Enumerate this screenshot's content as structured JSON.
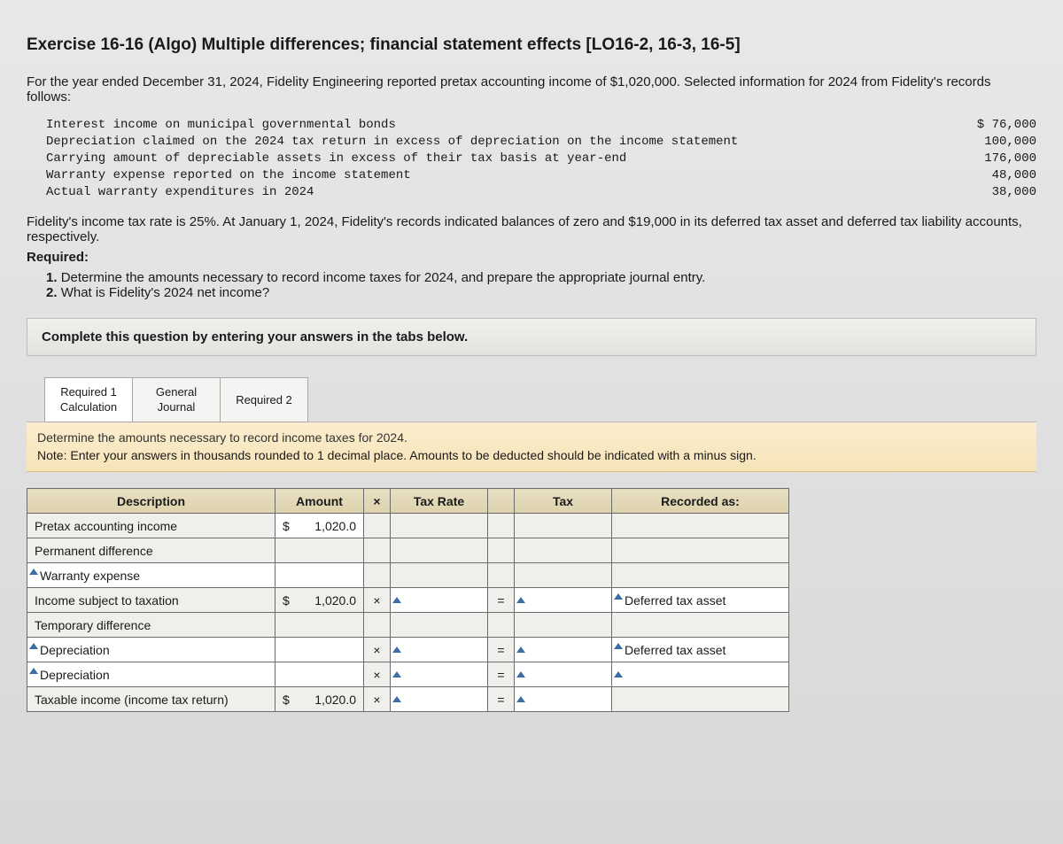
{
  "title": "Exercise 16-16 (Algo) Multiple differences; financial statement effects [LO16-2, 16-3, 16-5]",
  "intro": "For the year ended December 31, 2024, Fidelity Engineering reported pretax accounting income of $1,020,000. Selected information for 2024 from Fidelity's records follows:",
  "records": [
    {
      "label": "Interest income on municipal governmental bonds",
      "value": "$ 76,000"
    },
    {
      "label": "Depreciation claimed on the 2024 tax return in excess of depreciation on the income statement",
      "value": "100,000"
    },
    {
      "label": "Carrying amount of depreciable assets in excess of their tax basis at year-end",
      "value": "176,000"
    },
    {
      "label": "Warranty expense reported on the income statement",
      "value": "48,000"
    },
    {
      "label": "Actual warranty expenditures in 2024",
      "value": "38,000"
    }
  ],
  "para2": "Fidelity's income tax rate is 25%. At January 1, 2024, Fidelity's records indicated balances of zero and $19,000 in its deferred tax asset and deferred tax liability accounts, respectively.",
  "required_label": "Required:",
  "requirements": [
    "Determine the amounts necessary to record income taxes for 2024, and prepare the appropriate journal entry.",
    "What is Fidelity's 2024 net income?"
  ],
  "instruction": "Complete this question by entering your answers in the tabs below.",
  "tabs": {
    "t1a": "Required 1",
    "t1b": "Calculation",
    "t2a": "General",
    "t2b": "Journal",
    "t3": "Required 2"
  },
  "note_line1": "Determine the amounts necessary to record income taxes for 2024.",
  "note_line2": "Note: Enter your answers in thousands rounded to 1 decimal place. Amounts to be deducted should be indicated with a minus sign.",
  "table": {
    "headers": {
      "desc": "Description",
      "amount": "Amount",
      "op": "×",
      "rate": "Tax Rate",
      "tax": "Tax",
      "rec": "Recorded as:"
    },
    "rows": [
      {
        "desc": "Pretax accounting income",
        "amount": "1,020.0",
        "show_amount": true,
        "op": "",
        "rate": "",
        "eq": "",
        "tax": "",
        "rec": "",
        "desc_input": false,
        "amt_locked": false,
        "rate_locked": true,
        "tax_locked": true,
        "rec_locked": true
      },
      {
        "desc": "Permanent difference",
        "amount": "",
        "show_amount": false,
        "op": "",
        "rate": "",
        "eq": "",
        "tax": "",
        "rec": "",
        "desc_input": false,
        "amt_locked": true,
        "rate_locked": true,
        "tax_locked": true,
        "rec_locked": true
      },
      {
        "desc": "Warranty expense",
        "amount": "",
        "show_amount": false,
        "op": "",
        "rate": "",
        "eq": "",
        "tax": "",
        "rec": "",
        "desc_input": true,
        "amt_locked": false,
        "rate_locked": true,
        "tax_locked": true,
        "rec_locked": true
      },
      {
        "desc": "Income subject to taxation",
        "amount": "1,020.0",
        "show_amount": true,
        "op": "×",
        "rate": "",
        "eq": "=",
        "tax": "",
        "rec": "Deferred tax asset",
        "desc_input": false,
        "amt_locked": true,
        "rate_locked": false,
        "tax_locked": false,
        "rec_locked": false
      },
      {
        "desc": "Temporary difference",
        "amount": "",
        "show_amount": false,
        "op": "",
        "rate": "",
        "eq": "",
        "tax": "",
        "rec": "",
        "desc_input": false,
        "amt_locked": true,
        "rate_locked": true,
        "tax_locked": true,
        "rec_locked": true
      },
      {
        "desc": "Depreciation",
        "amount": "",
        "show_amount": false,
        "op": "×",
        "rate": "",
        "eq": "=",
        "tax": "",
        "rec": "Deferred tax asset",
        "desc_input": true,
        "amt_locked": false,
        "rate_locked": false,
        "tax_locked": false,
        "rec_locked": false
      },
      {
        "desc": "Depreciation",
        "amount": "",
        "show_amount": false,
        "op": "×",
        "rate": "",
        "eq": "=",
        "tax": "",
        "rec": "",
        "desc_input": true,
        "amt_locked": false,
        "rate_locked": false,
        "tax_locked": false,
        "rec_locked": false
      },
      {
        "desc": "Taxable income (income tax return)",
        "amount": "1,020.0",
        "show_amount": true,
        "op": "×",
        "rate": "",
        "eq": "=",
        "tax": "",
        "rec": "",
        "desc_input": false,
        "amt_locked": true,
        "rate_locked": false,
        "tax_locked": false,
        "rec_locked": true
      }
    ]
  },
  "colors": {
    "header_bg": "#ddd2ac",
    "note_bg": "#f6e4b8",
    "border": "#6b6b6b"
  }
}
